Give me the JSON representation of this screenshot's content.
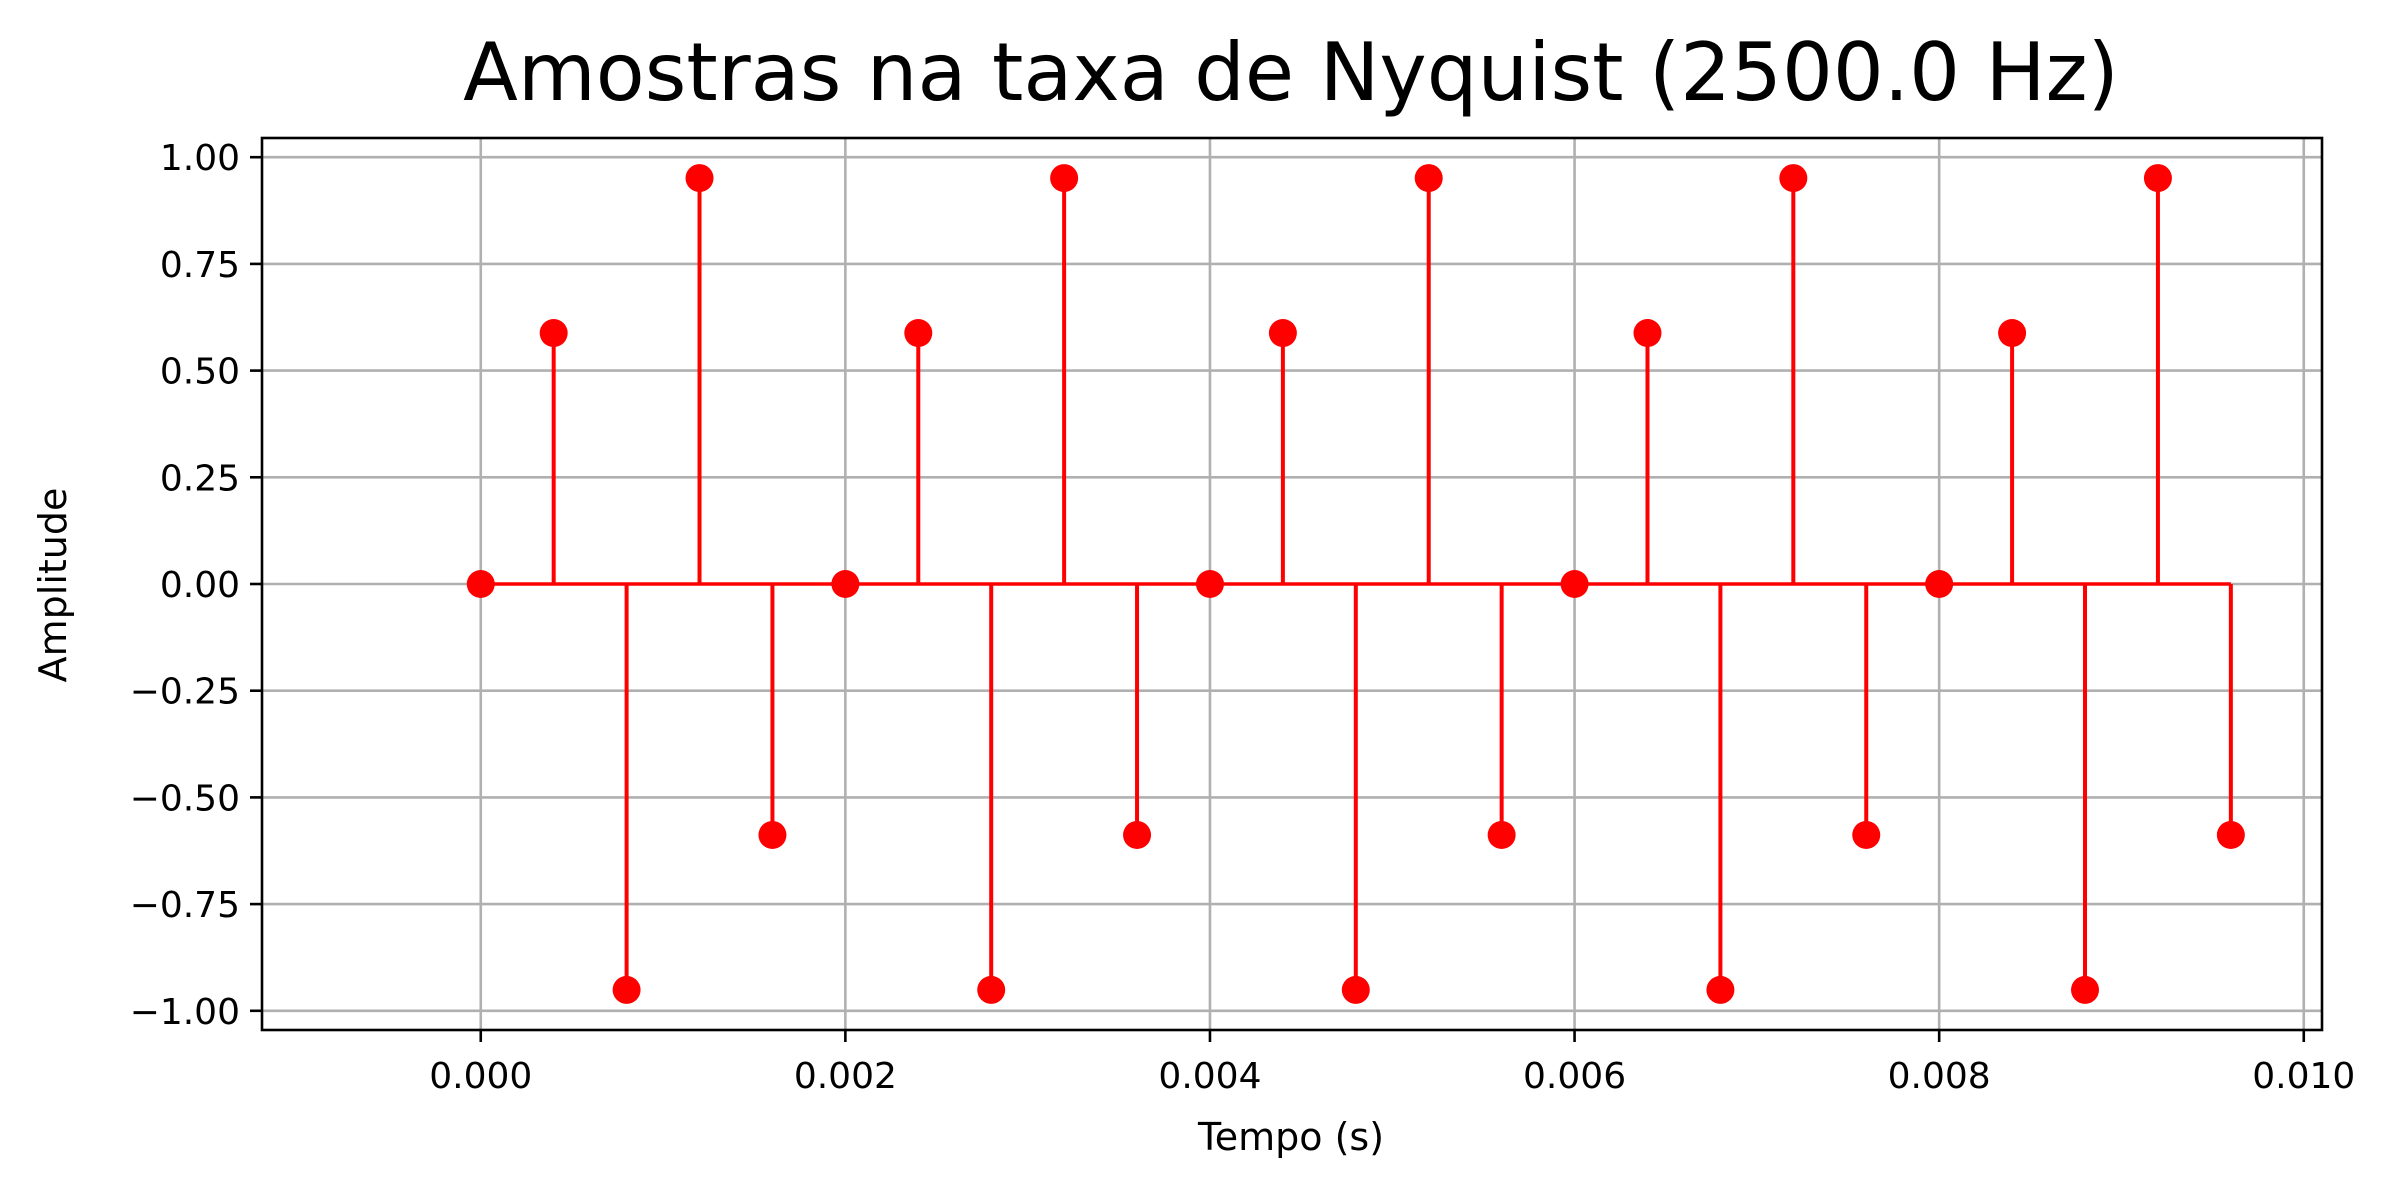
{
  "chart_data": {
    "type": "stem",
    "title": "Amostras na taxa de Nyquist (2500.0 Hz)",
    "xlabel": "Tempo (s)",
    "ylabel": "Amplitude",
    "xlim": [
      -0.0012,
      0.0101
    ],
    "ylim": [
      -1.045,
      1.045
    ],
    "xticks": [
      0.0,
      0.002,
      0.004,
      0.006,
      0.008,
      0.01
    ],
    "xtick_labels": [
      "0.000",
      "0.002",
      "0.004",
      "0.006",
      "0.008",
      "0.010"
    ],
    "yticks": [
      -1.0,
      -0.75,
      -0.5,
      -0.25,
      0.0,
      0.25,
      0.5,
      0.75,
      1.0
    ],
    "ytick_labels": [
      "−1.00",
      "−0.75",
      "−0.50",
      "−0.25",
      "0.00",
      "0.25",
      "0.50",
      "0.75",
      "1.00"
    ],
    "grid": true,
    "color": "#ff0000",
    "series": [
      {
        "x": [
          0.0,
          0.0004,
          0.0008,
          0.0012,
          0.0016,
          0.002,
          0.0024,
          0.0028,
          0.0032,
          0.0036,
          0.004,
          0.0044,
          0.0048,
          0.0052,
          0.0056,
          0.006,
          0.0064,
          0.0068,
          0.0072,
          0.0076,
          0.008,
          0.0084,
          0.0088,
          0.0092,
          0.0096
        ],
        "y": [
          0.0,
          0.588,
          -0.951,
          0.951,
          -0.588,
          0.0,
          0.588,
          -0.951,
          0.951,
          -0.588,
          0.0,
          0.588,
          -0.951,
          0.951,
          -0.588,
          0.0,
          0.588,
          -0.951,
          0.951,
          -0.588,
          0.0,
          0.588,
          -0.951,
          0.951,
          -0.588
        ]
      }
    ]
  }
}
